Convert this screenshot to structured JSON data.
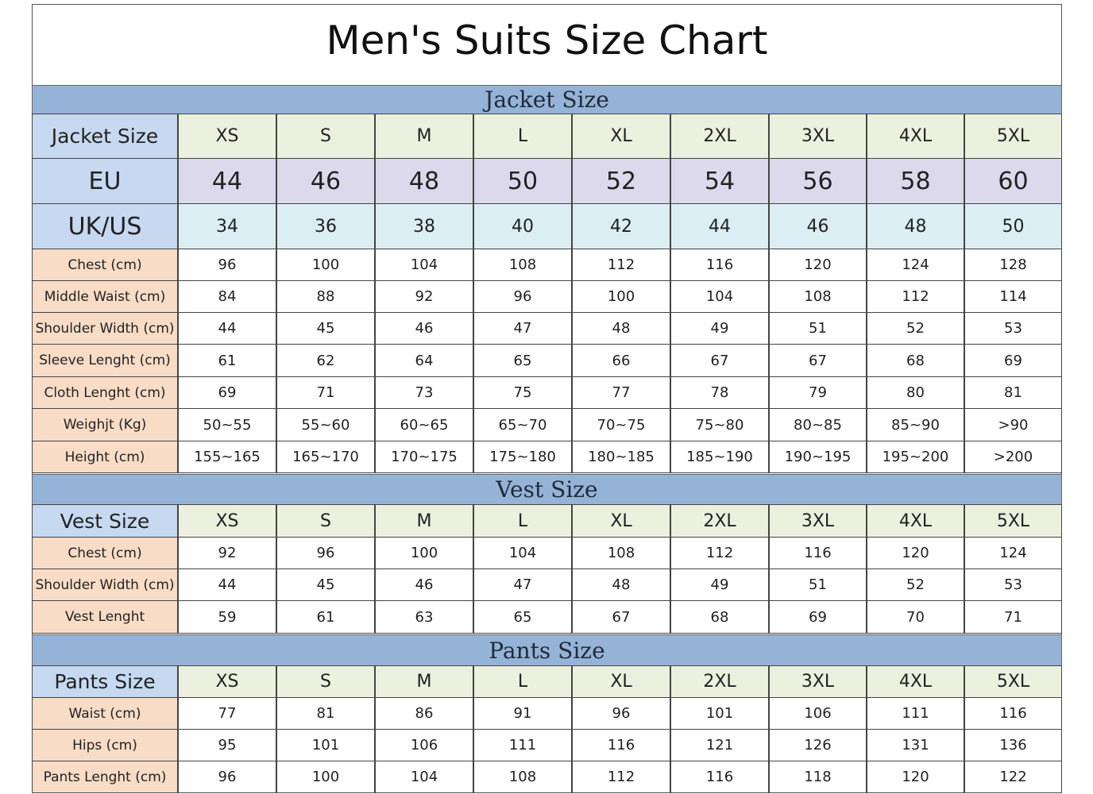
{
  "title": "Men's Suits Size Chart",
  "sections": [
    {
      "heading": "Jacket Size",
      "header": [
        "Jacket Size",
        "XS",
        "S",
        "M",
        "L",
        "XL",
        "2XL",
        "3XL",
        "4XL",
        "5XL"
      ],
      "rows": [
        [
          "EU",
          44,
          46,
          48,
          50,
          52,
          54,
          56,
          58,
          60
        ],
        [
          "UK/US",
          34,
          36,
          38,
          40,
          42,
          44,
          46,
          48,
          50
        ],
        [
          "Chest (cm)",
          96,
          100,
          104,
          108,
          112,
          116,
          120,
          124,
          128
        ],
        [
          "Middle Waist (cm)",
          84,
          88,
          92,
          96,
          100,
          104,
          108,
          112,
          114
        ],
        [
          "Shoulder Width (cm)",
          44,
          45,
          46,
          47,
          48,
          49,
          51,
          52,
          53
        ],
        [
          "Sleeve Lenght (cm)",
          61,
          62,
          64,
          65,
          66,
          67,
          67,
          68,
          69
        ],
        [
          "Cloth Lenght (cm)",
          69,
          71,
          73,
          75,
          77,
          78,
          79,
          80,
          81
        ],
        [
          "Weighjt (Kg)",
          "50~55",
          "55~60",
          "60~65",
          "65~70",
          "70~75",
          "75~80",
          "80~85",
          "85~90",
          ">90"
        ],
        [
          "Height (cm)",
          "155~165",
          "165~170",
          "170~175",
          "175~180",
          "180~185",
          "185~190",
          "190~195",
          "195~200",
          ">200"
        ]
      ]
    },
    {
      "heading": "Vest Size",
      "header": [
        "Vest Size",
        "XS",
        "S",
        "M",
        "L",
        "XL",
        "2XL",
        "3XL",
        "4XL",
        "5XL"
      ],
      "rows": [
        [
          "Chest (cm)",
          92,
          96,
          100,
          104,
          108,
          112,
          116,
          120,
          124
        ],
        [
          "Shoulder Width (cm)",
          44,
          45,
          46,
          47,
          48,
          49,
          51,
          52,
          53
        ],
        [
          "Vest Lenght",
          59,
          61,
          63,
          65,
          67,
          68,
          69,
          70,
          71
        ]
      ]
    },
    {
      "heading": "Pants Size",
      "header": [
        "Pants Size",
        "XS",
        "S",
        "M",
        "L",
        "XL",
        "2XL",
        "3XL",
        "4XL",
        "5XL"
      ],
      "rows": [
        [
          "Waist (cm)",
          77,
          81,
          86,
          91,
          96,
          101,
          106,
          111,
          116
        ],
        [
          "Hips (cm)",
          95,
          101,
          106,
          111,
          116,
          121,
          126,
          131,
          136
        ],
        [
          "Pants Lenght (cm)",
          96,
          100,
          104,
          108,
          112,
          116,
          118,
          120,
          122
        ]
      ]
    }
  ]
}
